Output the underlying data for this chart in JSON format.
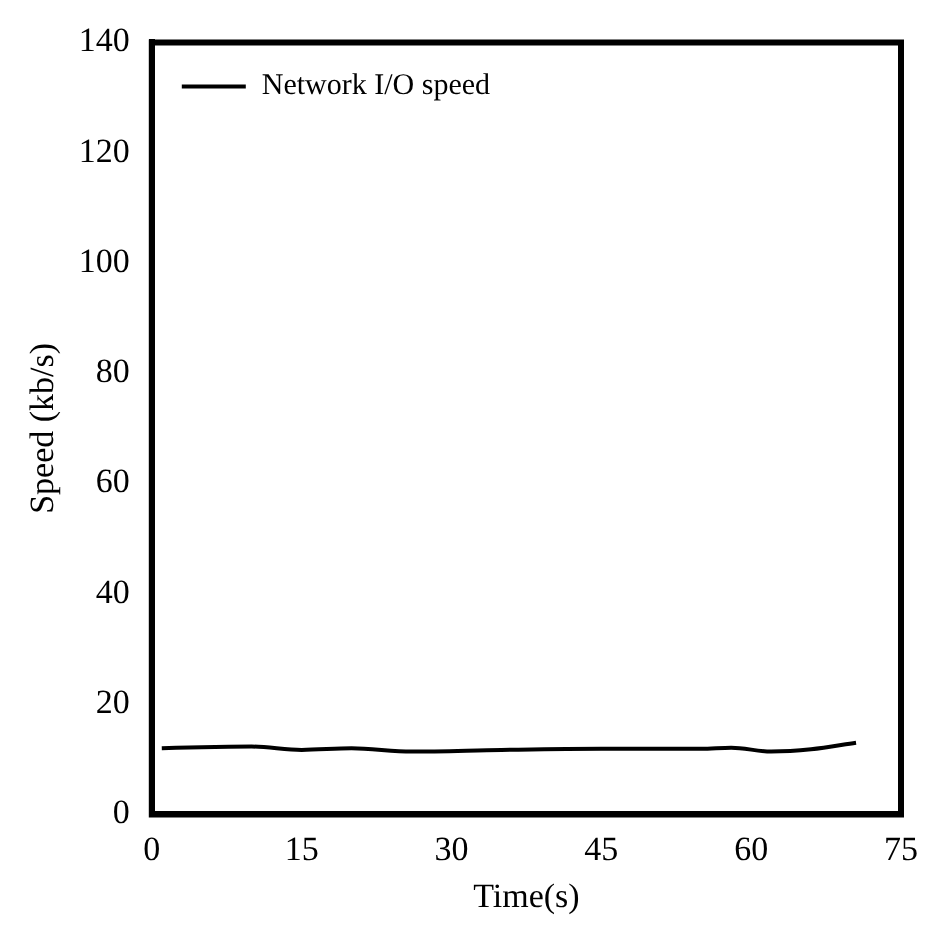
{
  "chart_data": {
    "type": "line",
    "xlabel": "Time(s)",
    "ylabel": "Speed (kb/s)",
    "x": [
      1,
      5,
      10,
      15,
      20,
      26,
      35,
      45,
      55,
      58,
      62,
      66,
      70.5
    ],
    "series": [
      {
        "name": "Network I/O speed",
        "color": "#000000",
        "values": [
          12,
          12.2,
          12.3,
          11.7,
          12,
          11.4,
          11.7,
          11.9,
          11.9,
          12.1,
          11.4,
          11.8,
          13
        ]
      }
    ],
    "xlim": [
      0,
      75
    ],
    "xticks": [
      0,
      15,
      30,
      45,
      60,
      75
    ],
    "ylim": [
      0,
      140
    ],
    "yticks": [
      0,
      20,
      40,
      60,
      80,
      100,
      120,
      140
    ],
    "grid": false,
    "legend": "top left",
    "marker": "none",
    "line_style": "solid"
  }
}
